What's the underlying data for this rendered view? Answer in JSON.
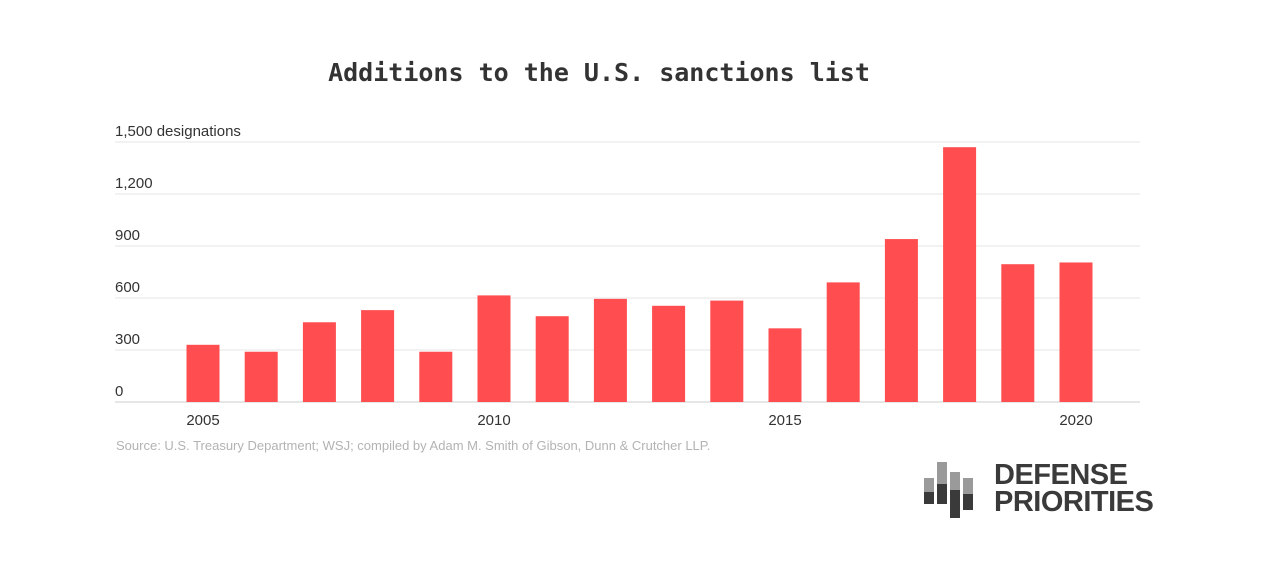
{
  "chart_data": {
    "type": "bar",
    "title": "Additions to the U.S. sanctions list",
    "ylabel_unit": "designations",
    "x": [
      2005,
      2006,
      2007,
      2008,
      2009,
      2010,
      2011,
      2012,
      2013,
      2014,
      2015,
      2016,
      2017,
      2018,
      2019,
      2020
    ],
    "values": [
      330,
      290,
      460,
      530,
      290,
      615,
      495,
      595,
      555,
      585,
      425,
      690,
      940,
      1470,
      795,
      805
    ],
    "ylim": [
      0,
      1500
    ],
    "yticks": [
      0,
      300,
      600,
      900,
      1200,
      1500
    ],
    "ytick_labels": [
      "0",
      "300",
      "600",
      "900",
      "1,200",
      "1,500 designations"
    ],
    "xticks": [
      2005,
      2010,
      2015,
      2020
    ],
    "xtick_labels": [
      "2005",
      "2010",
      "2015",
      "2020"
    ],
    "grid": true,
    "bar_color": "#ff4d50",
    "grid_color": "#e6e6e6",
    "axis_color": "#cccccc"
  },
  "source": "Source: U.S. Treasury Department; WSJ; compiled by Adam M. Smith of Gibson, Dunn & Crutcher LLP.",
  "brand": {
    "line1": "DEFENSE",
    "line2": "PRIORITIES"
  }
}
